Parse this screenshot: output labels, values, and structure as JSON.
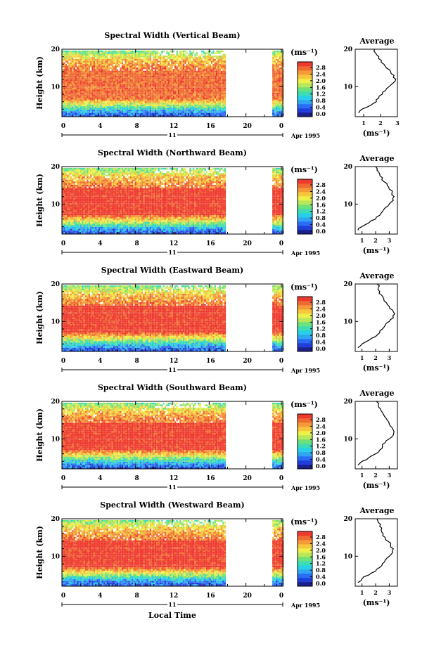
{
  "figure": {
    "xlabel_bottom": "Local Time",
    "date_label": "Apr 1995",
    "day_label": "11",
    "ylabel": "Height (km)",
    "unit_label": "(ms⁻¹)",
    "avg_title": "Average",
    "avg_xlabel": "(ms⁻¹)"
  },
  "colormap": [
    "#1c1f8c",
    "#1f3fd6",
    "#2a6cf5",
    "#2fa6f2",
    "#27d0e6",
    "#3ddcb4",
    "#6fe07a",
    "#b8e85a",
    "#eef04a",
    "#f6c63d",
    "#f49a38",
    "#ef6a32",
    "#ee3a2e"
  ],
  "chart_data": [
    {
      "type": "heatmap",
      "title": "Spectral Width (Vertical Beam)",
      "x_range": [
        0,
        24
      ],
      "y_range": [
        2,
        20
      ],
      "x_ticks": [
        "0",
        "4",
        "8",
        "12",
        "16",
        "20",
        "0"
      ],
      "y_ticks": [
        "10",
        "20"
      ],
      "colorbar_ticks": [
        "2.8",
        "2.4",
        "2.0",
        "1.6",
        "1.2",
        "0.8",
        "0.4",
        "0.0"
      ],
      "data_gap_hours": [
        17.8,
        22.7
      ],
      "avg": {
        "x_ticks": [
          "1",
          "2",
          "3"
        ],
        "x_range": [
          0.5,
          3.0
        ],
        "profile": [
          [
            3,
            0.7
          ],
          [
            4,
            0.9
          ],
          [
            5,
            1.4
          ],
          [
            6,
            1.75
          ],
          [
            7,
            1.9
          ],
          [
            8,
            2.1
          ],
          [
            9,
            2.3
          ],
          [
            10,
            2.5
          ],
          [
            11,
            2.75
          ],
          [
            12,
            2.9
          ],
          [
            13,
            2.8
          ],
          [
            14,
            2.6
          ],
          [
            15,
            2.35
          ],
          [
            16,
            2.2
          ],
          [
            17,
            2.05
          ],
          [
            18,
            1.9
          ],
          [
            19,
            1.7
          ],
          [
            20,
            1.65
          ]
        ]
      }
    },
    {
      "type": "heatmap",
      "title": "Spectral Width (Northward Beam)",
      "x_range": [
        0,
        24
      ],
      "y_range": [
        2,
        20
      ],
      "x_ticks": [
        "0",
        "4",
        "8",
        "12",
        "16",
        "20",
        "0"
      ],
      "y_ticks": [
        "10",
        "20"
      ],
      "colorbar_ticks": [
        "2.8",
        "2.4",
        "2.0",
        "1.6",
        "1.2",
        "0.8",
        "0.4",
        "0.0"
      ],
      "data_gap_hours": [
        17.8,
        22.7
      ],
      "avg": {
        "x_ticks": [
          "1",
          "2",
          "3"
        ],
        "x_range": [
          0.5,
          3.6
        ],
        "profile": [
          [
            3,
            0.7
          ],
          [
            4,
            1.0
          ],
          [
            5,
            1.5
          ],
          [
            6,
            2.0
          ],
          [
            7,
            2.3
          ],
          [
            8,
            2.5
          ],
          [
            9,
            2.7
          ],
          [
            10,
            3.0
          ],
          [
            11,
            3.3
          ],
          [
            12,
            3.35
          ],
          [
            13,
            3.2
          ],
          [
            14,
            3.0
          ],
          [
            15,
            2.85
          ],
          [
            16,
            2.6
          ],
          [
            17,
            2.5
          ],
          [
            18,
            2.3
          ],
          [
            19,
            2.1
          ],
          [
            20,
            2.0
          ]
        ]
      }
    },
    {
      "type": "heatmap",
      "title": "Spectral Width (Eastward Beam)",
      "x_range": [
        0,
        24
      ],
      "y_range": [
        2,
        20
      ],
      "x_ticks": [
        "0",
        "4",
        "8",
        "12",
        "16",
        "20",
        "0"
      ],
      "y_ticks": [
        "10",
        "20"
      ],
      "colorbar_ticks": [
        "2.8",
        "2.4",
        "2.0",
        "1.6",
        "1.2",
        "0.8",
        "0.4",
        "0.0"
      ],
      "data_gap_hours": [
        17.8,
        22.7
      ],
      "avg": {
        "x_ticks": [
          "1",
          "2",
          "3"
        ],
        "x_range": [
          0.5,
          3.6
        ],
        "profile": [
          [
            3,
            0.7
          ],
          [
            4,
            1.0
          ],
          [
            5,
            1.5
          ],
          [
            6,
            2.0
          ],
          [
            7,
            2.3
          ],
          [
            8,
            2.5
          ],
          [
            9,
            2.7
          ],
          [
            10,
            3.0
          ],
          [
            11,
            3.3
          ],
          [
            12,
            3.4
          ],
          [
            13,
            3.25
          ],
          [
            14,
            3.0
          ],
          [
            15,
            2.8
          ],
          [
            16,
            2.6
          ],
          [
            17,
            2.45
          ],
          [
            18,
            2.3
          ],
          [
            19,
            2.2
          ],
          [
            20,
            2.1
          ]
        ]
      }
    },
    {
      "type": "heatmap",
      "title": "Spectral Width (Southward Beam)",
      "x_range": [
        0,
        24
      ],
      "y_range": [
        2,
        20
      ],
      "x_ticks": [
        "0",
        "4",
        "8",
        "12",
        "16",
        "20",
        "0"
      ],
      "y_ticks": [
        "10",
        "20"
      ],
      "colorbar_ticks": [
        "2.8",
        "2.4",
        "2.0",
        "1.6",
        "1.2",
        "0.8",
        "0.4",
        "0.0"
      ],
      "data_gap_hours": [
        17.8,
        22.7
      ],
      "avg": {
        "x_ticks": [
          "1",
          "2",
          "3"
        ],
        "x_range": [
          0.5,
          3.6
        ],
        "profile": [
          [
            3,
            0.7
          ],
          [
            4,
            1.0
          ],
          [
            5,
            1.5
          ],
          [
            6,
            2.0
          ],
          [
            7,
            2.3
          ],
          [
            8,
            2.5
          ],
          [
            9,
            2.7
          ],
          [
            10,
            3.0
          ],
          [
            11,
            3.3
          ],
          [
            12,
            3.35
          ],
          [
            13,
            3.2
          ],
          [
            14,
            3.0
          ],
          [
            15,
            2.85
          ],
          [
            16,
            2.65
          ],
          [
            17,
            2.5
          ],
          [
            18,
            2.35
          ],
          [
            19,
            2.2
          ],
          [
            20,
            2.05
          ]
        ]
      }
    },
    {
      "type": "heatmap",
      "title": "Spectral Width (Westward Beam)",
      "x_range": [
        0,
        24
      ],
      "y_range": [
        2,
        20
      ],
      "x_ticks": [
        "0",
        "4",
        "8",
        "12",
        "16",
        "20",
        "0"
      ],
      "y_ticks": [
        "10",
        "20"
      ],
      "colorbar_ticks": [
        "2.8",
        "2.4",
        "2.0",
        "1.6",
        "1.2",
        "0.8",
        "0.4",
        "0.0"
      ],
      "data_gap_hours": [
        17.8,
        22.7
      ],
      "avg": {
        "x_ticks": [
          "1",
          "2",
          "3"
        ],
        "x_range": [
          0.5,
          3.6
        ],
        "profile": [
          [
            3,
            0.7
          ],
          [
            4,
            1.0
          ],
          [
            5,
            1.5
          ],
          [
            6,
            2.0
          ],
          [
            7,
            2.3
          ],
          [
            8,
            2.5
          ],
          [
            9,
            2.7
          ],
          [
            10,
            3.0
          ],
          [
            11,
            3.25
          ],
          [
            12,
            3.3
          ],
          [
            13,
            3.1
          ],
          [
            14,
            2.9
          ],
          [
            15,
            2.7
          ],
          [
            16,
            2.55
          ],
          [
            17,
            2.4
          ],
          [
            18,
            2.3
          ],
          [
            19,
            2.2
          ],
          [
            20,
            2.1
          ]
        ]
      }
    }
  ]
}
